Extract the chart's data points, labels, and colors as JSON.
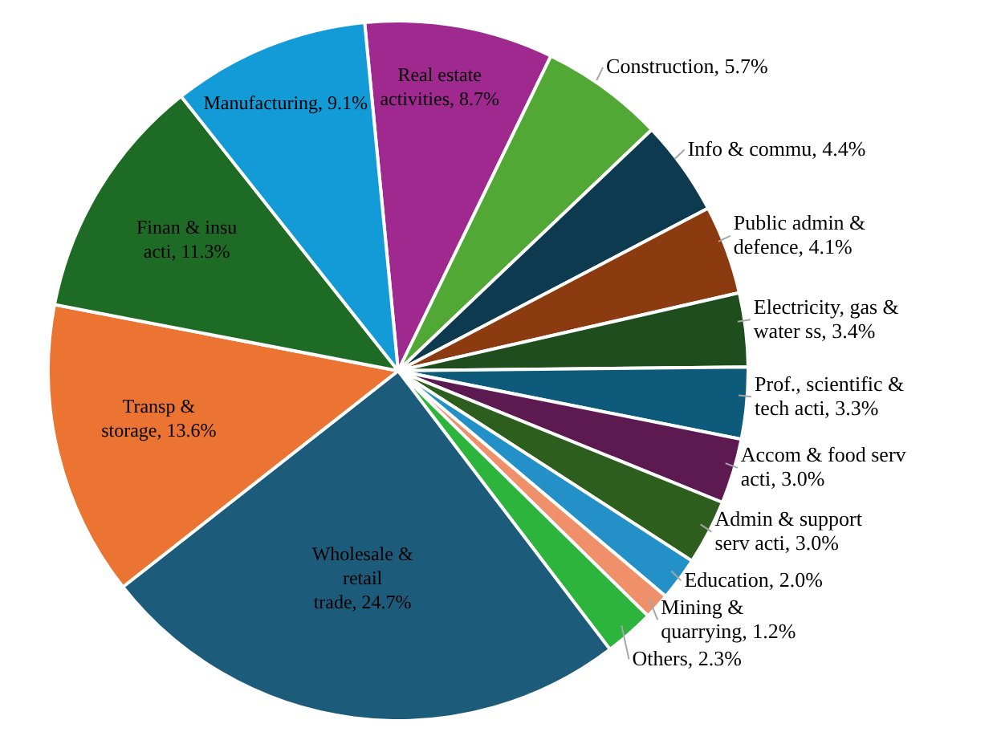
{
  "chart_data": {
    "type": "pie",
    "categories": [
      "Real estate activities",
      "Construction",
      "Info & commu",
      "Public admin & defence",
      "Electricity, gas & water ss",
      "Prof., scientific & tech acti",
      "Accom & food serv acti",
      "Admin & support serv acti",
      "Education",
      "Mining & quarrying",
      "Others",
      "Wholesale & retail trade",
      "Transp & storage",
      "Finan & insu acti",
      "Manufacturing"
    ],
    "values": [
      8.7,
      5.7,
      4.4,
      4.1,
      3.4,
      3.3,
      3.0,
      3.0,
      2.0,
      1.2,
      2.3,
      24.7,
      13.6,
      11.3,
      9.1
    ],
    "value_labels": [
      "8.7%",
      "5.7%",
      "4.4%",
      "4.1%",
      "3.4%",
      "3.3%",
      "3.0%",
      "3.0%",
      "2.0%",
      "1.2%",
      "2.3%",
      "24.7%",
      "13.6%",
      "11.3%",
      "9.1%"
    ],
    "colors": [
      "#a0298f",
      "#52a834",
      "#0e3a50",
      "#8c3a10",
      "#1f4d1d",
      "#0e5a7a",
      "#5c1a50",
      "#2d5e1e",
      "#2490c8",
      "#f0906a",
      "#2db43c",
      "#1d5b7a",
      "#eb7433",
      "#1e6b25",
      "#129bd6"
    ]
  }
}
